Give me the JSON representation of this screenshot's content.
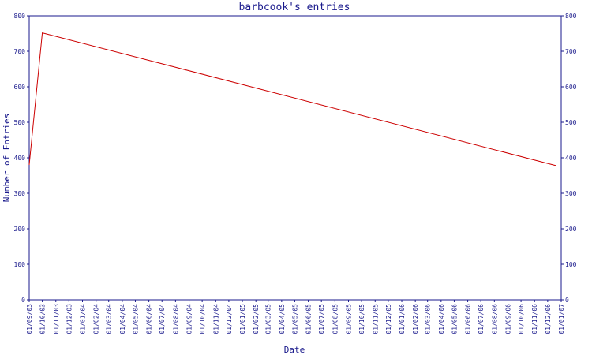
{
  "chart_data": {
    "type": "line",
    "title": "barbcook's entries",
    "xlabel": "Date",
    "ylabel": "Number of Entries",
    "ylim": [
      0,
      800
    ],
    "yticks": [
      0,
      100,
      200,
      300,
      400,
      500,
      600,
      700,
      800
    ],
    "grid": false,
    "x_tick_labels": [
      "01/09/03",
      "01/10/03",
      "01/11/03",
      "01/12/03",
      "01/01/04",
      "01/02/04",
      "01/03/04",
      "01/04/04",
      "01/05/04",
      "01/06/04",
      "01/07/04",
      "01/08/04",
      "01/09/04",
      "01/10/04",
      "01/11/04",
      "01/12/04",
      "01/01/05",
      "01/02/05",
      "01/03/05",
      "01/04/05",
      "01/05/05",
      "01/06/05",
      "01/07/05",
      "01/08/05",
      "01/09/05",
      "01/10/05",
      "01/11/05",
      "01/12/05",
      "01/01/06",
      "01/02/06",
      "01/03/06",
      "01/04/06",
      "01/05/06",
      "01/06/06",
      "01/07/06",
      "01/08/06",
      "01/09/06",
      "01/10/06",
      "01/11/06",
      "01/12/06",
      "01/01/07"
    ],
    "series": [
      {
        "color": "#cc0000",
        "points": [
          {
            "x": "2003-09-01",
            "y": 380
          },
          {
            "x": "2003-10-01",
            "y": 752
          },
          {
            "x": "2006-12-20",
            "y": 378
          }
        ]
      }
    ]
  }
}
